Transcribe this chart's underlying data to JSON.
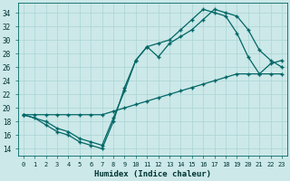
{
  "xlabel": "Humidex (Indice chaleur)",
  "bg_color": "#cce8e8",
  "grid_color": "#aad4d4",
  "line_color": "#006666",
  "xlim": [
    -0.5,
    23.5
  ],
  "ylim": [
    13.0,
    35.5
  ],
  "xticks": [
    0,
    1,
    2,
    3,
    4,
    5,
    6,
    7,
    8,
    9,
    10,
    11,
    12,
    13,
    14,
    15,
    16,
    17,
    18,
    19,
    20,
    21,
    22,
    23
  ],
  "yticks": [
    14,
    16,
    18,
    20,
    22,
    24,
    26,
    28,
    30,
    32,
    34
  ],
  "line1_x": [
    0,
    1,
    2,
    3,
    4,
    5,
    6,
    7,
    8,
    9,
    10,
    11,
    12,
    13,
    14,
    15,
    16,
    17,
    18,
    19,
    20,
    21,
    22,
    23
  ],
  "line1_y": [
    19.0,
    19.0,
    19.0,
    19.0,
    19.0,
    19.0,
    19.0,
    19.0,
    19.5,
    20.0,
    20.5,
    21.0,
    21.5,
    22.0,
    22.5,
    23.0,
    23.5,
    24.0,
    24.5,
    25.0,
    25.0,
    25.0,
    25.0,
    25.0
  ],
  "line2_x": [
    0,
    1,
    2,
    3,
    4,
    5,
    6,
    7,
    8,
    9,
    10,
    11,
    12,
    13,
    14,
    15,
    16,
    17,
    18,
    19,
    20,
    21,
    22,
    23
  ],
  "line2_y": [
    19.0,
    18.5,
    17.5,
    16.5,
    16.0,
    15.0,
    14.5,
    14.0,
    18.0,
    23.0,
    27.0,
    29.0,
    29.5,
    30.0,
    31.5,
    33.0,
    34.5,
    34.0,
    33.5,
    31.0,
    27.5,
    25.0,
    26.5,
    27.0
  ],
  "line3_x": [
    0,
    2,
    3,
    4,
    5,
    6,
    7,
    8,
    9,
    10,
    11,
    12,
    13,
    14,
    15,
    16,
    17,
    18,
    19,
    20,
    21,
    22,
    23
  ],
  "line3_y": [
    19.0,
    18.0,
    17.0,
    16.5,
    15.5,
    15.0,
    14.5,
    18.5,
    22.5,
    27.0,
    29.0,
    27.5,
    29.5,
    30.5,
    31.5,
    33.0,
    34.5,
    34.0,
    33.5,
    31.5,
    28.5,
    27.0,
    26.0
  ]
}
